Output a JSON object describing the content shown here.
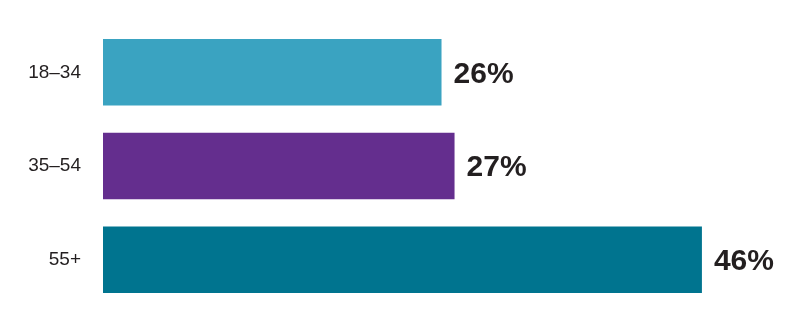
{
  "chart_data": {
    "type": "bar",
    "orientation": "horizontal",
    "categories": [
      "18–34",
      "35–54",
      "55+"
    ],
    "values": [
      26,
      27,
      46
    ],
    "value_labels": [
      "26%",
      "27%",
      "46%"
    ],
    "colors": [
      "#3aa3c1",
      "#642e8e",
      "#00748f"
    ],
    "xlim": [
      0,
      50
    ],
    "data_labels": true,
    "tick_labels": "y",
    "grid": false
  }
}
